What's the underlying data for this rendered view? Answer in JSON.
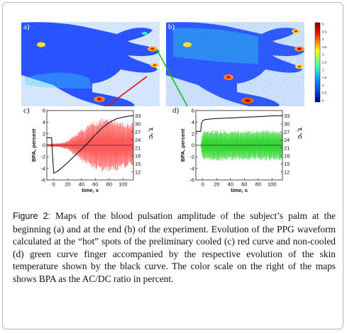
{
  "figure": {
    "label": "Figure 2:",
    "caption": " Maps of the blood pulsation amplitude of the subject’s palm at the beginning (a) and at the end (b) of the experiment. Evolution of the PPG waveform calculated at the “hot” spots of the preliminary cooled (c) red curve and non-cooled (d) green curve finger accompanied by the respective evolution of the skin temperature shown by the black curve. The color scale on the right of the maps shows BPA as the AC/DC ratio in percent."
  },
  "panels": {
    "a": "a)",
    "b": "b)",
    "c": "c)",
    "d": "d)"
  },
  "colors": {
    "map_background": "#1a3cff",
    "ppg_cooled": "#ff5a5a",
    "ppg_noncooled": "#33d633",
    "temperature": "#000000",
    "arrow_red": "#e01010",
    "arrow_green": "#10c010"
  },
  "colorbar": {
    "ticks": [
      "5",
      "4.5",
      "4",
      "3.5",
      "3",
      "2.5",
      "2",
      "1.5",
      "1",
      "0.5",
      "0"
    ]
  },
  "chart_data": [
    {
      "type": "line",
      "panel": "c",
      "xlabel": "time, s",
      "ylabel": "BPA, percent",
      "y2label": "T, °C",
      "xlim": [
        -10,
        115
      ],
      "ylim": [
        -6,
        6
      ],
      "y2lim": [
        9,
        35
      ],
      "xticks": [
        "0",
        "20",
        "40",
        "60",
        "80",
        "100"
      ],
      "yticks": [
        "6",
        "4",
        "2",
        "0",
        "-2",
        "-4",
        "-6"
      ],
      "y2ticks": [
        "33",
        "30",
        "27",
        "24",
        "21",
        "18",
        "15",
        "12"
      ],
      "series": [
        {
          "role": "ppg_envelope",
          "x": [
            -10,
            -5,
            0,
            10,
            20,
            30,
            40,
            50,
            60,
            70,
            80,
            90,
            100,
            110
          ],
          "values": [
            0.2,
            0.3,
            0.3,
            0.4,
            0.8,
            1.8,
            2.8,
            3.5,
            4.3,
            4.7,
            4.6,
            4.5,
            4.0,
            3.8
          ]
        },
        {
          "role": "temperature",
          "x": [
            -10,
            -3,
            -2,
            0,
            5,
            10,
            20,
            30,
            40,
            50,
            60,
            70,
            80,
            90,
            100,
            110,
            115
          ],
          "values": [
            24.8,
            24.8,
            19.0,
            11.5,
            12.2,
            13.2,
            15.5,
            18.0,
            20.5,
            23.0,
            26.0,
            28.5,
            30.5,
            31.9,
            32.5,
            33.0,
            33.0
          ]
        }
      ]
    },
    {
      "type": "line",
      "panel": "d",
      "xlabel": "time, s",
      "ylabel": "BPA, percent",
      "y2label": "T, °C",
      "xlim": [
        -10,
        115
      ],
      "ylim": [
        -6,
        6
      ],
      "y2lim": [
        9,
        35
      ],
      "xticks": [
        "0",
        "20",
        "40",
        "60",
        "80",
        "100"
      ],
      "yticks": [
        "6",
        "4",
        "2",
        "0",
        "-2",
        "-4",
        "-6"
      ],
      "y2ticks": [
        "33",
        "30",
        "27",
        "24",
        "21",
        "18",
        "15",
        "12"
      ],
      "series": [
        {
          "role": "ppg_envelope",
          "x": [
            -10,
            -3,
            0,
            20,
            40,
            60,
            80,
            100,
            110
          ],
          "values": [
            0.0,
            0.0,
            2.7,
            2.7,
            2.6,
            2.6,
            2.6,
            2.7,
            2.7
          ]
        },
        {
          "role": "temperature",
          "x": [
            -10,
            -3,
            -2,
            0,
            3,
            10,
            20,
            40,
            60,
            80,
            100,
            115
          ],
          "values": [
            27.2,
            27.2,
            30.0,
            31.2,
            31.6,
            31.8,
            32.0,
            32.2,
            32.5,
            32.7,
            33.0,
            33.1
          ]
        }
      ]
    }
  ]
}
